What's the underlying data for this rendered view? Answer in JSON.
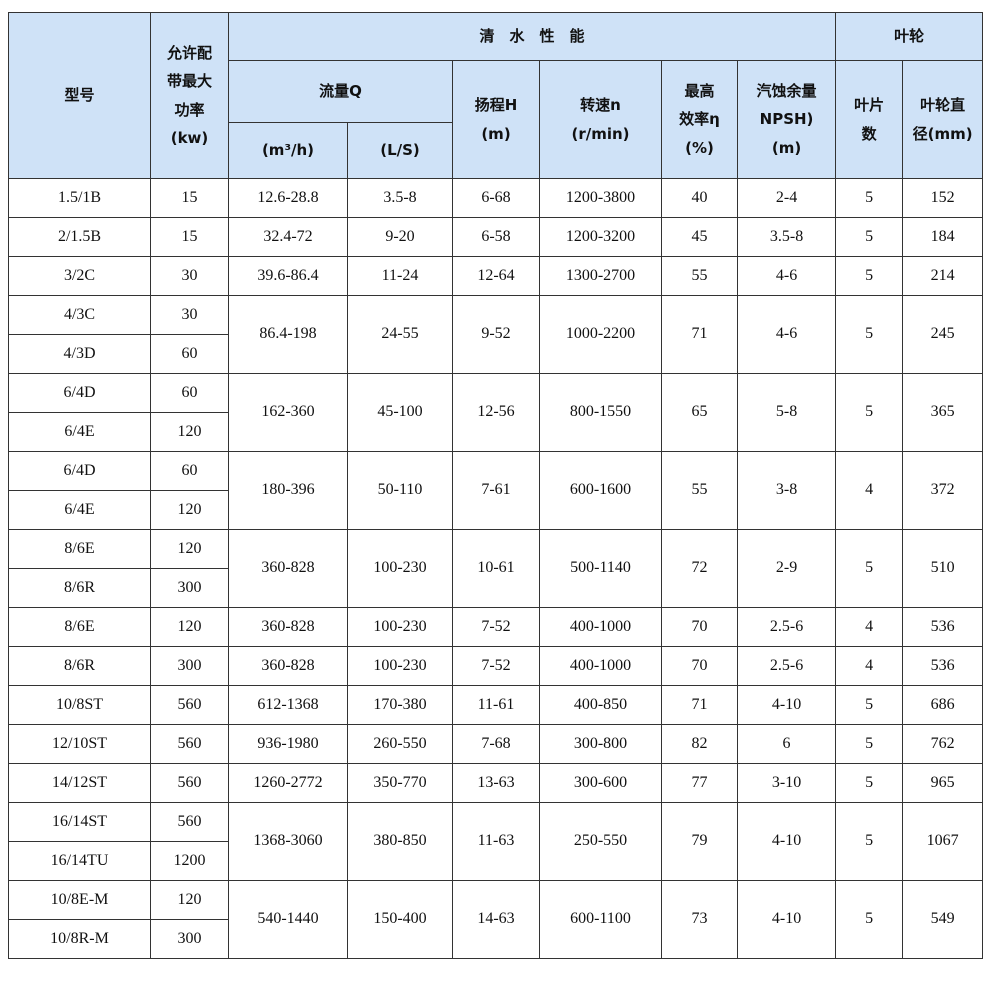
{
  "header": {
    "model": "型号",
    "power": [
      "允许配",
      "带最大",
      "功率",
      "(kw)"
    ],
    "performance": "清　水　性　能",
    "impeller": "叶轮",
    "flow": "流量Q",
    "head": [
      "扬程H",
      "(m)"
    ],
    "speed": [
      "转速n",
      "(r/min)"
    ],
    "efficiency": [
      "最高",
      "效率η",
      "(%)"
    ],
    "npsh": [
      "汽蚀余量",
      "NPSH)",
      "(m)"
    ],
    "blades": [
      "叶片",
      "数"
    ],
    "diameter": [
      "叶轮直",
      "径(mm)"
    ],
    "flow_m3h": "(m³/h)",
    "flow_ls": "(L/S)"
  },
  "groups": [
    {
      "models": [
        [
          "1.5/1B",
          "15"
        ]
      ],
      "specs": [
        "12.6-28.8",
        "3.5-8",
        "6-68",
        "1200-3800",
        "40",
        "2-4",
        "5",
        "152"
      ]
    },
    {
      "models": [
        [
          "2/1.5B",
          "15"
        ]
      ],
      "specs": [
        "32.4-72",
        "9-20",
        "6-58",
        "1200-3200",
        "45",
        "3.5-8",
        "5",
        "184"
      ]
    },
    {
      "models": [
        [
          "3/2C",
          "30"
        ]
      ],
      "specs": [
        "39.6-86.4",
        "11-24",
        "12-64",
        "1300-2700",
        "55",
        "4-6",
        "5",
        "214"
      ]
    },
    {
      "models": [
        [
          "4/3C",
          "30"
        ],
        [
          "4/3D",
          "60"
        ]
      ],
      "specs": [
        "86.4-198",
        "24-55",
        "9-52",
        "1000-2200",
        "71",
        "4-6",
        "5",
        "245"
      ]
    },
    {
      "models": [
        [
          "6/4D",
          "60"
        ],
        [
          "6/4E",
          "120"
        ]
      ],
      "specs": [
        "162-360",
        "45-100",
        "12-56",
        "800-1550",
        "65",
        "5-8",
        "5",
        "365"
      ]
    },
    {
      "models": [
        [
          "6/4D",
          "60"
        ],
        [
          "6/4E",
          "120"
        ]
      ],
      "specs": [
        "180-396",
        "50-110",
        "7-61",
        "600-1600",
        "55",
        "3-8",
        "4",
        "372"
      ]
    },
    {
      "models": [
        [
          "8/6E",
          "120"
        ],
        [
          "8/6R",
          "300"
        ]
      ],
      "specs": [
        "360-828",
        "100-230",
        "10-61",
        "500-1140",
        "72",
        "2-9",
        "5",
        "510"
      ]
    },
    {
      "models": [
        [
          "8/6E",
          "120"
        ]
      ],
      "specs": [
        "360-828",
        "100-230",
        "7-52",
        "400-1000",
        "70",
        "2.5-6",
        "4",
        "536"
      ]
    },
    {
      "models": [
        [
          "8/6R",
          "300"
        ]
      ],
      "specs": [
        "360-828",
        "100-230",
        "7-52",
        "400-1000",
        "70",
        "2.5-6",
        "4",
        "536"
      ]
    },
    {
      "models": [
        [
          "10/8ST",
          "560"
        ]
      ],
      "specs": [
        "612-1368",
        "170-380",
        "11-61",
        "400-850",
        "71",
        "4-10",
        "5",
        "686"
      ]
    },
    {
      "models": [
        [
          "12/10ST",
          "560"
        ]
      ],
      "specs": [
        "936-1980",
        "260-550",
        "7-68",
        "300-800",
        "82",
        "6",
        "5",
        "762"
      ]
    },
    {
      "models": [
        [
          "14/12ST",
          "560"
        ]
      ],
      "specs": [
        "1260-2772",
        "350-770",
        "13-63",
        "300-600",
        "77",
        "3-10",
        "5",
        "965"
      ]
    },
    {
      "models": [
        [
          "16/14ST",
          "560"
        ],
        [
          "16/14TU",
          "1200"
        ]
      ],
      "specs": [
        "1368-3060",
        "380-850",
        "11-63",
        "250-550",
        "79",
        "4-10",
        "5",
        "1067"
      ]
    },
    {
      "models": [
        [
          "10/8E-M",
          "120"
        ],
        [
          "10/8R-M",
          "300"
        ]
      ],
      "specs": [
        "540-1440",
        "150-400",
        "14-63",
        "600-1100",
        "73",
        "4-10",
        "5",
        "549"
      ]
    }
  ]
}
